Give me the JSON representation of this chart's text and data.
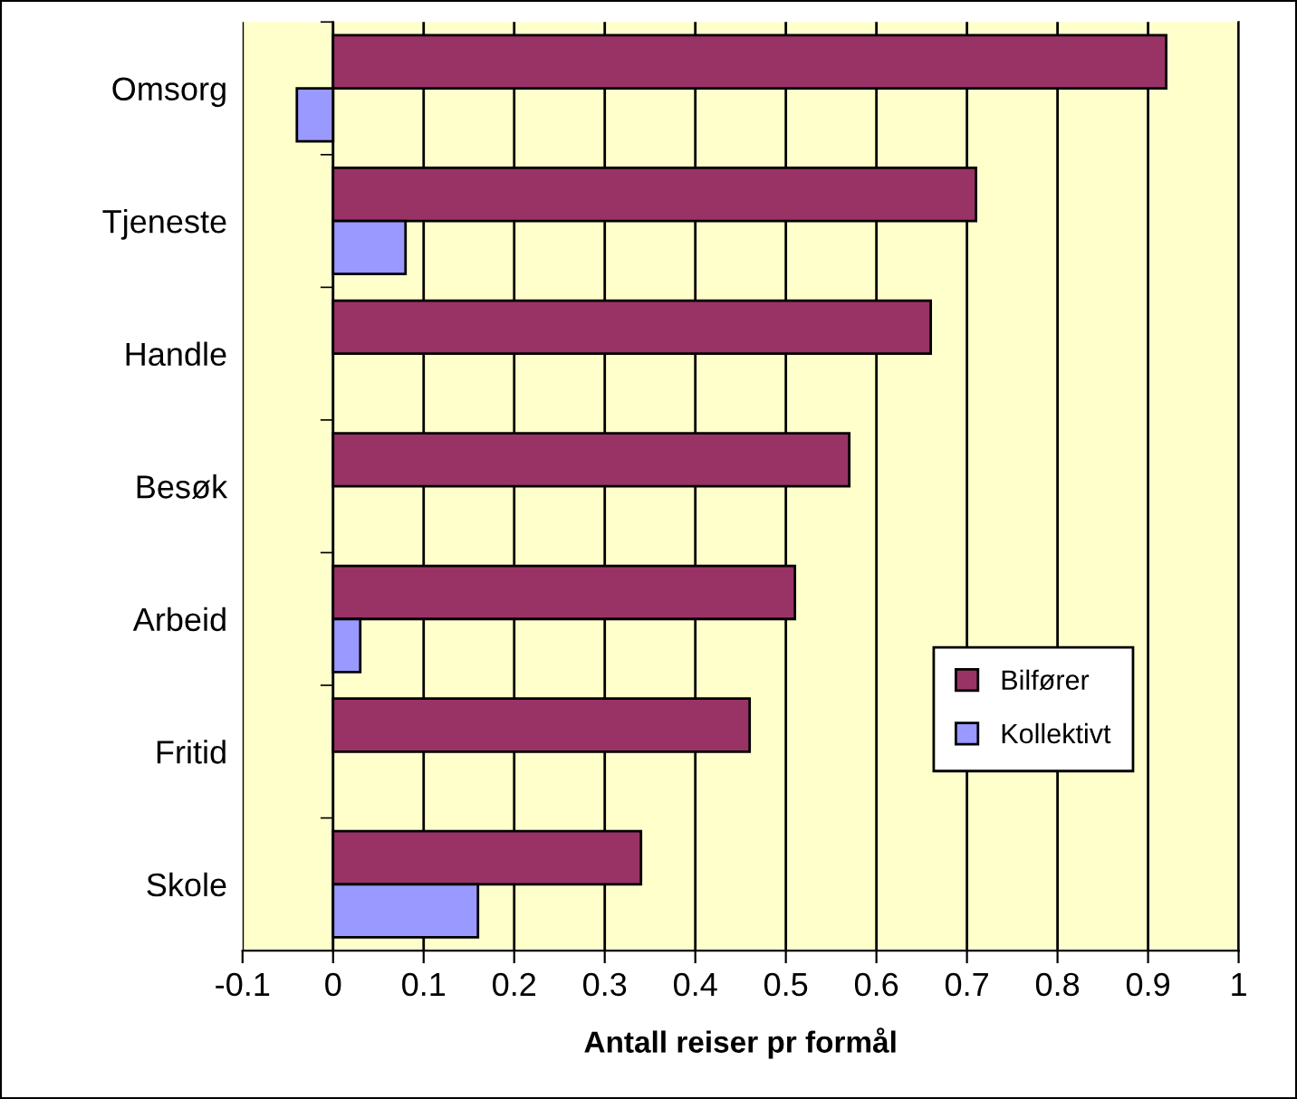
{
  "chart_data": {
    "type": "bar",
    "orientation": "horizontal",
    "xlabel": "Antall reiser pr formål",
    "categories": [
      "Omsorg",
      "Tjeneste",
      "Handle",
      "Besøk",
      "Arbeid",
      "Fritid",
      "Skole"
    ],
    "series": [
      {
        "name": "Bilfører",
        "color": "#993366",
        "values": [
          0.92,
          0.71,
          0.66,
          0.57,
          0.51,
          0.46,
          0.34
        ]
      },
      {
        "name": "Kollektivt",
        "color": "#9999ff",
        "values": [
          -0.04,
          0.08,
          null,
          null,
          0.03,
          null,
          0.16
        ]
      }
    ],
    "xlim": [
      -0.1,
      1
    ],
    "xticks": [
      -0.1,
      0,
      0.1,
      0.2,
      0.3,
      0.4,
      0.5,
      0.6,
      0.7,
      0.8,
      0.9,
      1
    ],
    "grid": "x",
    "legend": "right"
  }
}
